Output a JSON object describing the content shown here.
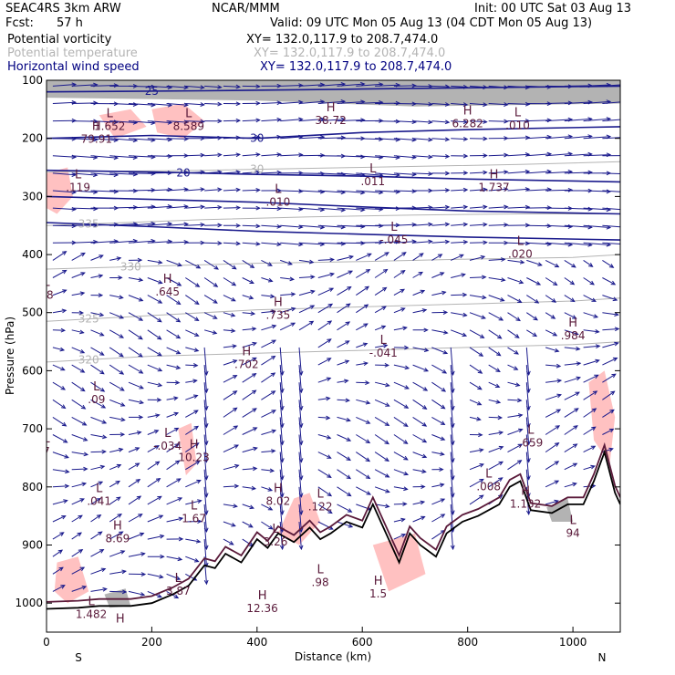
{
  "header": {
    "model": "SEAC4RS  3km ARW",
    "org": "NCAR/MMM",
    "init": "Init: 00 UTC Sat 03 Aug 13",
    "fcst_label": "Fcst:",
    "fcst_value": "57 h",
    "valid": "Valid: 09 UTC Mon 05 Aug 13 (04 CDT Mon 05 Aug 13)"
  },
  "fields": [
    {
      "name": "Potential vorticity",
      "xy": "XY= 132.0,117.9 to 208.7,474.0",
      "color": "#000000"
    },
    {
      "name": "Potential temperature",
      "xy": "XY= 132.0,117.9 to 208.7,474.0",
      "color": "#b4b4b4"
    },
    {
      "name": "Horizontal wind speed",
      "xy": "XY= 132.0,117.9 to 208.7,474.0",
      "color": "#000080"
    }
  ],
  "colors": {
    "wind_vector": "#1a1a8c",
    "pv_contour": "#5a1a3a",
    "theta_contour": "#b4b4b4",
    "speed_contour": "#1a1a8c",
    "shading_pink": "#ffb6b6",
    "terrain": "#000000"
  },
  "chart_data": {
    "type": "cross-section",
    "ylabel": "Pressure (hPa)",
    "xlabel": "Distance (km)",
    "x_range": [
      0,
      1090
    ],
    "y_range": [
      1050,
      100
    ],
    "x_ticks": [
      "0",
      "200",
      "400",
      "600",
      "800",
      "1000"
    ],
    "y_ticks": [
      "100",
      "200",
      "300",
      "400",
      "500",
      "600",
      "700",
      "800",
      "900",
      "1000"
    ],
    "x_tick_values": [
      0,
      200,
      400,
      600,
      800,
      1000
    ],
    "y_tick_values": [
      100,
      200,
      300,
      400,
      500,
      600,
      700,
      800,
      900,
      1000
    ],
    "end_labels": {
      "left": "S",
      "right": "N"
    },
    "terrain": [
      [
        0,
        1010
      ],
      [
        60,
        1008
      ],
      [
        100,
        1005
      ],
      [
        160,
        1005
      ],
      [
        200,
        1000
      ],
      [
        240,
        985
      ],
      [
        270,
        970
      ],
      [
        300,
        935
      ],
      [
        320,
        940
      ],
      [
        340,
        915
      ],
      [
        370,
        930
      ],
      [
        400,
        890
      ],
      [
        420,
        905
      ],
      [
        440,
        880
      ],
      [
        470,
        895
      ],
      [
        500,
        870
      ],
      [
        520,
        890
      ],
      [
        540,
        880
      ],
      [
        570,
        860
      ],
      [
        600,
        870
      ],
      [
        620,
        830
      ],
      [
        650,
        890
      ],
      [
        670,
        930
      ],
      [
        690,
        880
      ],
      [
        710,
        900
      ],
      [
        740,
        920
      ],
      [
        760,
        880
      ],
      [
        790,
        860
      ],
      [
        820,
        850
      ],
      [
        860,
        830
      ],
      [
        880,
        800
      ],
      [
        900,
        790
      ],
      [
        920,
        840
      ],
      [
        960,
        845
      ],
      [
        990,
        830
      ],
      [
        1020,
        830
      ],
      [
        1040,
        790
      ],
      [
        1060,
        740
      ],
      [
        1080,
        810
      ],
      [
        1090,
        830
      ]
    ],
    "theta_contours": [
      {
        "label": "335",
        "level_x": 80,
        "points": [
          [
            0,
            350
          ],
          [
            150,
            345
          ],
          [
            300,
            340
          ],
          [
            500,
            335
          ],
          [
            700,
            332
          ],
          [
            900,
            330
          ],
          [
            1090,
            330
          ]
        ]
      },
      {
        "label": "330",
        "level_x": 160,
        "points": [
          [
            0,
            425
          ],
          [
            200,
            420
          ],
          [
            400,
            415
          ],
          [
            600,
            412
          ],
          [
            800,
            408
          ],
          [
            1000,
            405
          ],
          [
            1090,
            400
          ]
        ]
      },
      {
        "label": "325",
        "level_x": 80,
        "points": [
          [
            0,
            515
          ],
          [
            200,
            505
          ],
          [
            400,
            495
          ],
          [
            600,
            490
          ],
          [
            800,
            485
          ],
          [
            1000,
            480
          ],
          [
            1090,
            475
          ]
        ]
      },
      {
        "label": "320",
        "level_x": 80,
        "points": [
          [
            0,
            585
          ],
          [
            200,
            575
          ],
          [
            400,
            570
          ],
          [
            600,
            565
          ],
          [
            800,
            560
          ],
          [
            1000,
            555
          ],
          [
            1090,
            550
          ]
        ]
      },
      {
        "label": "30",
        "level_x": 400,
        "points": [
          [
            0,
            258
          ],
          [
            300,
            255
          ],
          [
            600,
            250
          ],
          [
            900,
            245
          ],
          [
            1090,
            240
          ]
        ]
      }
    ],
    "speed_contours": [
      {
        "label": "25",
        "level_x": 200,
        "points": [
          [
            0,
            120
          ],
          [
            300,
            118
          ],
          [
            600,
            115
          ],
          [
            900,
            112
          ],
          [
            1090,
            110
          ]
        ]
      },
      {
        "label": "30",
        "level_x": 400,
        "points": [
          [
            0,
            200
          ],
          [
            200,
            195
          ],
          [
            400,
            200
          ],
          [
            600,
            190
          ],
          [
            800,
            185
          ],
          [
            1090,
            180
          ]
        ]
      },
      {
        "label": "20",
        "level_x": 260,
        "points": [
          [
            0,
            255
          ],
          [
            200,
            258
          ],
          [
            400,
            262
          ],
          [
            600,
            265
          ],
          [
            800,
            270
          ],
          [
            1090,
            275
          ]
        ]
      },
      {
        "label": "",
        "level_x": 0,
        "points": [
          [
            0,
            300
          ],
          [
            200,
            305
          ],
          [
            400,
            310
          ],
          [
            600,
            318
          ],
          [
            800,
            325
          ],
          [
            1090,
            330
          ]
        ]
      },
      {
        "label": "",
        "level_x": 0,
        "points": [
          [
            0,
            345
          ],
          [
            200,
            352
          ],
          [
            400,
            360
          ],
          [
            600,
            365
          ],
          [
            800,
            370
          ],
          [
            1090,
            375
          ]
        ]
      }
    ],
    "extrema": [
      {
        "type": "L",
        "x": 120,
        "p": 170,
        "value": "1.652"
      },
      {
        "type": "H",
        "x": 95,
        "p": 192,
        "value": "79.91"
      },
      {
        "type": "L",
        "x": 270,
        "p": 170,
        "value": "8.589"
      },
      {
        "type": "H",
        "x": 540,
        "p": 160,
        "value": "38.72"
      },
      {
        "type": "H",
        "x": 800,
        "p": 165,
        "value": "6.282"
      },
      {
        "type": "L",
        "x": 895,
        "p": 168,
        "value": ".010"
      },
      {
        "type": "L",
        "x": 60,
        "p": 275,
        "value": ".119"
      },
      {
        "type": "L",
        "x": 440,
        "p": 300,
        "value": ".010"
      },
      {
        "type": "L",
        "x": 620,
        "p": 265,
        "value": ".011"
      },
      {
        "type": "H",
        "x": 850,
        "p": 275,
        "value": "1.737"
      },
      {
        "type": "L",
        "x": 660,
        "p": 365,
        "value": "-.045"
      },
      {
        "type": "L",
        "x": 900,
        "p": 390,
        "value": ".020"
      },
      {
        "type": "H",
        "x": 230,
        "p": 455,
        "value": ".645"
      },
      {
        "type": "H",
        "x": 440,
        "p": 495,
        "value": ".735"
      },
      {
        "type": "L",
        "x": 640,
        "p": 560,
        "value": "-.041"
      },
      {
        "type": "H",
        "x": 1000,
        "p": 530,
        "value": ".984"
      },
      {
        "type": "H",
        "x": 380,
        "p": 580,
        "value": ".702"
      },
      {
        "type": "L",
        "x": 95,
        "p": 640,
        "value": ".09"
      },
      {
        "type": "L",
        "x": 230,
        "p": 720,
        "value": "-.034"
      },
      {
        "type": "H",
        "x": 280,
        "p": 740,
        "value": "10.23"
      },
      {
        "type": "L",
        "x": 920,
        "p": 715,
        "value": ".659"
      },
      {
        "type": "L",
        "x": 840,
        "p": 790,
        "value": ".008"
      },
      {
        "type": "H",
        "x": 910,
        "p": 820,
        "value": "1.132"
      },
      {
        "type": "L",
        "x": 100,
        "p": 815,
        "value": ".041"
      },
      {
        "type": "H",
        "x": 440,
        "p": 815,
        "value": "8.02"
      },
      {
        "type": "L",
        "x": 520,
        "p": 825,
        "value": ".122"
      },
      {
        "type": "L",
        "x": 280,
        "p": 845,
        "value": "1.67"
      },
      {
        "type": "H",
        "x": 135,
        "p": 880,
        "value": "8.69"
      },
      {
        "type": "L",
        "x": 435,
        "p": 885,
        "value": "3.26"
      },
      {
        "type": "L",
        "x": 520,
        "p": 955,
        "value": ".98"
      },
      {
        "type": "H",
        "x": 630,
        "p": 975,
        "value": "1.5"
      },
      {
        "type": "L",
        "x": 1000,
        "p": 870,
        "value": "94"
      },
      {
        "type": "L",
        "x": 250,
        "p": 970,
        "value": "3.87"
      },
      {
        "type": "H",
        "x": 410,
        "p": 1000,
        "value": "12.36"
      },
      {
        "type": "L",
        "x": 85,
        "p": 1010,
        "value": "1.482"
      },
      {
        "type": "H",
        "x": 140,
        "p": 1040,
        "value": ""
      },
      {
        "type": "L",
        "x": 0,
        "p": 730,
        "value": "7"
      },
      {
        "type": "L",
        "x": 0,
        "p": 460,
        "value": "98"
      }
    ],
    "pink_regions": [
      {
        "points": [
          [
            200,
            150
          ],
          [
            260,
            140
          ],
          [
            300,
            170
          ],
          [
            260,
            200
          ],
          [
            210,
            190
          ]
        ]
      },
      {
        "points": [
          [
            100,
            160
          ],
          [
            160,
            150
          ],
          [
            190,
            180
          ],
          [
            130,
            200
          ]
        ]
      },
      {
        "points": [
          [
            0,
            260
          ],
          [
            40,
            250
          ],
          [
            50,
            300
          ],
          [
            20,
            330
          ],
          [
            0,
            320
          ]
        ]
      },
      {
        "points": [
          [
            250,
            700
          ],
          [
            275,
            690
          ],
          [
            285,
            760
          ],
          [
            265,
            780
          ]
        ]
      },
      {
        "points": [
          [
            440,
            880
          ],
          [
            470,
            820
          ],
          [
            500,
            810
          ],
          [
            520,
            860
          ],
          [
            480,
            900
          ]
        ]
      },
      {
        "points": [
          [
            20,
            930
          ],
          [
            60,
            920
          ],
          [
            80,
            980
          ],
          [
            40,
            1000
          ],
          [
            15,
            980
          ]
        ]
      },
      {
        "points": [
          [
            1030,
            620
          ],
          [
            1060,
            600
          ],
          [
            1080,
            680
          ],
          [
            1070,
            760
          ],
          [
            1040,
            720
          ]
        ]
      },
      {
        "points": [
          [
            620,
            900
          ],
          [
            700,
            880
          ],
          [
            720,
            950
          ],
          [
            650,
            980
          ]
        ]
      }
    ],
    "gray_regions": [
      {
        "points": [
          [
            0,
            100
          ],
          [
            1090,
            100
          ],
          [
            1090,
            140
          ],
          [
            700,
            145
          ],
          [
            400,
            135
          ],
          [
            0,
            130
          ]
        ]
      },
      {
        "points": [
          [
            950,
            835
          ],
          [
            990,
            820
          ],
          [
            1000,
            860
          ],
          [
            960,
            860
          ]
        ]
      },
      {
        "points": [
          [
            110,
            985
          ],
          [
            150,
            975
          ],
          [
            160,
            1005
          ],
          [
            120,
            1008
          ]
        ]
      }
    ],
    "wind_grid": {
      "dx_km": 36,
      "dp_hpa": 30
    },
    "downdraft_columns": [
      300,
      440,
      475,
      755,
      900
    ]
  }
}
